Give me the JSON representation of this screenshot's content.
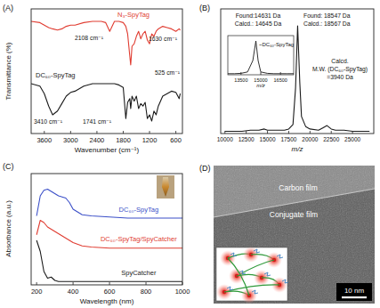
{
  "chart_data": [
    {
      "type": "line",
      "title": "(A)",
      "x_label": "Wavenumber (cm⁻¹)",
      "y_label": "Transmittance (%)",
      "x": [
        3900,
        3700,
        3600,
        3500,
        3410,
        3300,
        3200,
        3100,
        3000,
        2900,
        2700,
        2500,
        2300,
        2200,
        2108,
        2000,
        1900,
        1800,
        1741,
        1700,
        1650,
        1630,
        1600,
        1550,
        1500,
        1450,
        1400,
        1350,
        1300,
        1250,
        1200,
        1150,
        1100,
        1050,
        1000,
        900,
        800,
        700,
        600,
        525,
        500
      ],
      "series": [
        {
          "name": "N₃-SpyTag",
          "color": "#e03c31",
          "values": [
            90,
            89,
            87,
            85,
            84,
            83,
            84,
            86,
            87,
            87,
            89,
            90,
            90,
            89,
            82,
            90,
            90,
            89,
            86,
            80,
            62,
            55,
            70,
            72,
            78,
            82,
            76,
            80,
            82,
            75,
            72,
            80,
            78,
            82,
            84,
            86,
            85,
            84,
            82,
            84,
            83
          ]
        },
        {
          "name": "DC₆₀-SpyTag",
          "color": "#1a1a1a",
          "values": [
            40,
            38,
            32,
            22,
            15,
            18,
            24,
            30,
            33,
            34,
            38,
            40,
            40,
            40,
            40,
            40,
            39,
            37,
            12,
            25,
            28,
            20,
            30,
            26,
            30,
            20,
            24,
            22,
            25,
            12,
            15,
            10,
            18,
            15,
            22,
            30,
            32,
            34,
            33,
            28,
            32
          ]
        }
      ],
      "xlim": [
        3900,
        450
      ],
      "xticks": [
        3600,
        3000,
        2400,
        1800,
        1200,
        600
      ],
      "ylim": [
        0,
        100
      ],
      "tick_labels": "x",
      "annotations": [
        "2108 cm⁻¹",
        "1630 cm⁻¹",
        "3410 cm⁻¹",
        "1741 cm⁻¹",
        "525 cm⁻¹"
      ]
    },
    {
      "type": "line",
      "title": "(B)",
      "x_label": "m/z",
      "x": [
        10000,
        11000,
        12000,
        13000,
        13500,
        14000,
        14631,
        15000,
        16000,
        17000,
        17500,
        18000,
        18300,
        18547,
        18800,
        19000,
        19500,
        20000,
        21000,
        21500,
        22000,
        22500,
        23000,
        24000,
        25000,
        26000,
        27000
      ],
      "values": [
        2,
        2,
        2,
        3,
        3,
        3,
        4,
        3,
        3,
        3,
        4,
        8,
        40,
        95,
        45,
        15,
        6,
        4,
        3,
        5,
        7,
        4,
        3,
        3,
        2,
        2,
        2
      ],
      "color": "#1a1a1a",
      "xlim": [
        9500,
        27500
      ],
      "xticks": [
        10000,
        12500,
        15000,
        17500,
        20000,
        22500,
        25000
      ],
      "ylim": [
        0,
        110
      ],
      "tick_labels": "x",
      "annotations": [
        "Found:14631 Da",
        "Calcd.: 14645 Da",
        "Found: 18547 Da",
        "Calcd.: 18567 Da",
        "Calcd.",
        "M.W. (DC₆₀-SpyTag)",
        "=3940 Da"
      ]
    },
    {
      "type": "line",
      "title": "~DC₆₀-SpyTag",
      "x_label": "m/z",
      "x": [
        12500,
        13000,
        13500,
        14000,
        14400,
        14631,
        14800,
        15000,
        15500,
        16000,
        16500,
        17000,
        17500
      ],
      "values": [
        3,
        3,
        4,
        8,
        40,
        95,
        40,
        8,
        4,
        3,
        3,
        3,
        3
      ],
      "color": "#1a1a1a",
      "xlim": [
        12500,
        17500
      ],
      "xticks": [
        13500,
        15000,
        16500
      ],
      "ylim": [
        0,
        110
      ],
      "tick_labels": "x"
    },
    {
      "type": "line",
      "title": "(C)",
      "x_label": "Wavelength (nm)",
      "y_label": "Absorbance (a.u.)",
      "x": [
        200,
        220,
        240,
        260,
        280,
        300,
        320,
        340,
        360,
        380,
        400,
        450,
        500,
        600,
        700,
        800,
        900,
        1000
      ],
      "series": [
        {
          "name": "DC₆₀-SpyTag",
          "color": "#3b4fc8",
          "values": [
            62,
            80,
            85,
            86,
            84,
            82,
            80,
            79,
            78,
            74,
            68,
            63,
            62,
            61,
            60,
            60,
            60,
            60
          ]
        },
        {
          "name": "DC₆₀-SpyTag/SpyCatcher",
          "color": "#e03c31",
          "values": [
            45,
            58,
            56,
            52,
            50,
            48,
            46,
            44,
            42,
            40,
            38,
            35,
            34,
            33,
            33,
            33,
            33,
            33
          ]
        },
        {
          "name": "SpyCatcher",
          "color": "#1a1a1a",
          "values": [
            40,
            30,
            12,
            6,
            7,
            4,
            3,
            3,
            3,
            3,
            3,
            3,
            3,
            3,
            3,
            3,
            3,
            3
          ]
        }
      ],
      "xlim": [
        170,
        1000
      ],
      "xticks": [
        200,
        400,
        600,
        800,
        1000
      ],
      "ylim": [
        0,
        100
      ],
      "tick_labels": "x"
    }
  ],
  "image_panel": {
    "title": "(D)",
    "labels": [
      "Carbon film",
      "Conjugate film"
    ],
    "scale_bar": "10 nm"
  }
}
